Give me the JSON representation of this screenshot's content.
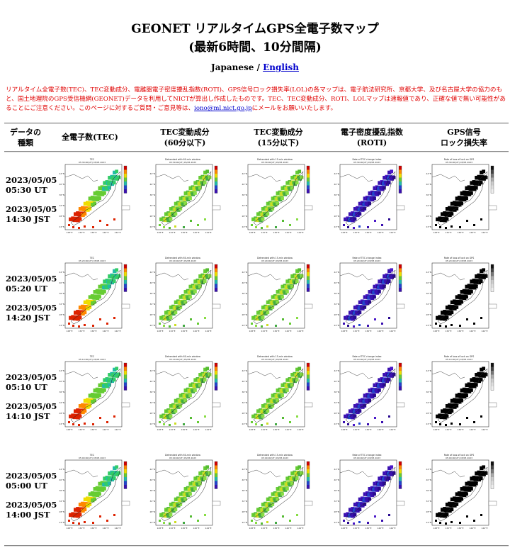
{
  "header": {
    "title_line1": "GEONET リアルタイムGPS全電子数マップ",
    "title_line2": "(最新6時間、10分間隔)",
    "lang_current": "Japanese / ",
    "lang_link": "English"
  },
  "notice": {
    "text1": "リアルタイム全電子数(TEC)、TEC変動成分、電離圏電子密度擾乱指数(ROTI)、GPS信号ロック損失率(LOL)の各マップは、電子航法研究所、京都大学、及び名古屋大学の協力のもと、国土地理院のGPS受信機網(GEONET)データを利用してNICTが算出し作成したものです。TEC、TEC変動成分、ROTI、LOLマップは速報値であり、正確な値で無い可能性があることにご注意ください。このページに対するご質問・ご意見等は、",
    "email": "iono@ml.nict.go.jp",
    "text2": "にメールをお願いいたします。"
  },
  "columns": {
    "c0": [
      "データの",
      "種類"
    ],
    "c1": [
      "全電子数(TEC)",
      ""
    ],
    "c2": [
      "TEC変動成分",
      "(60分以下)"
    ],
    "c3": [
      "TEC変動成分",
      "(15分以下)"
    ],
    "c4": [
      "電子密度擾乱指数",
      "(ROTI)"
    ],
    "c5": [
      "GPS信号",
      "ロック損失率"
    ]
  },
  "rows": [
    {
      "ut_date": "2023/05/05",
      "ut_time": "05:30 UT",
      "jst_date": "2023/05/05",
      "jst_time": "14:30 JST"
    },
    {
      "ut_date": "2023/05/05",
      "ut_time": "05:20 UT",
      "jst_date": "2023/05/05",
      "jst_time": "14:20 JST"
    },
    {
      "ut_date": "2023/05/05",
      "ut_time": "05:10 UT",
      "jst_date": "2023/05/05",
      "jst_time": "14:10 JST"
    },
    {
      "ut_date": "2023/05/05",
      "ut_time": "05:00 UT",
      "jst_date": "2023/05/05",
      "jst_time": "14:00 JST"
    }
  ],
  "map_titles": {
    "tec": "TEC",
    "d60": "Detrended with 60-min window",
    "d15": "Detrended with 15-min window",
    "roti": "Rate of TEC change index",
    "lol": "Rate of loss of lock on GPS"
  },
  "map_stamps": [
    "05:30:00(UT) 05/05 2023",
    "05:20:00(UT) 05/05 2023",
    "05:10:00(UT) 05/05 2023",
    "05:00:00(UT) 05/05 2023"
  ],
  "map_lat_labels": [
    "44°N",
    "40°N",
    "36°N",
    "32°N",
    "28°N",
    "24°N"
  ],
  "map_lon_labels": [
    "128°E",
    "132°E",
    "136°E",
    "140°E",
    "144°E"
  ],
  "colors": {
    "link": "#0000cc",
    "notice": "#e00000",
    "tec_north": "#33cc66",
    "tec_south": "#dd2200",
    "detrend": "#66cc33",
    "roti": "#3a10b0",
    "lol": "#000000"
  }
}
